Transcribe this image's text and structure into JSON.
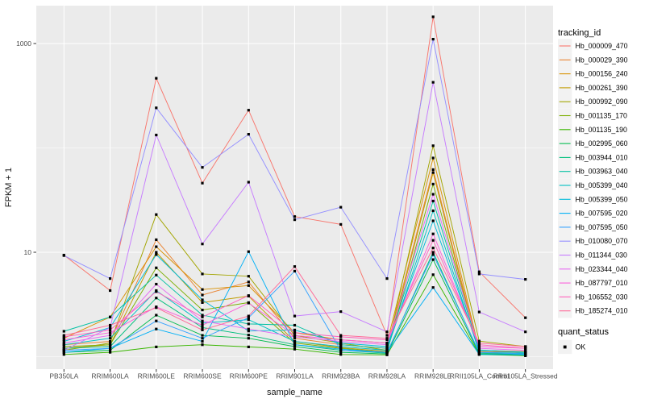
{
  "chart_data": {
    "type": "line",
    "title": "",
    "xlabel": "sample_name",
    "ylabel": "FPKM + 1",
    "y_scale": "log10",
    "y_tick_labels": [
      "1000",
      "10"
    ],
    "y_tick_values": [
      1000,
      10
    ],
    "y_minor_values": [
      100,
      1
    ],
    "grid": "on",
    "legend_position": "right",
    "legend_title": "tracking_id",
    "shape_legend": {
      "title": "quant_status",
      "entries": [
        "OK"
      ],
      "point_shape": "filled-square",
      "point_color": "#000000"
    },
    "panel_bg": "#EBEBEB",
    "grid_color": "#FFFFFF",
    "tick_color": "#333333",
    "x_categories": [
      "PB350LA",
      "RRIM600LA",
      "RRIM600LE",
      "RRIM600SE",
      "RRIM600PE",
      "RRIM901LA",
      "RRIM928BA",
      "RRIM928LA",
      "RRIM928LE",
      "RRII105LA_Control",
      "RRII105LA_Stressed"
    ],
    "series": [
      {
        "name": "Hb_000009_470",
        "color": "#F8766D",
        "values": [
          9.4,
          4.3,
          465,
          46,
          230,
          22,
          18.5,
          1.6,
          1800,
          6.5,
          2.36
        ]
      },
      {
        "name": "Hb_000029_390",
        "color": "#EA8331",
        "values": [
          1.3,
          1.4,
          13.2,
          3.9,
          5.2,
          1.5,
          1.3,
          1.2,
          62,
          1.12,
          1.1
        ]
      },
      {
        "name": "Hb_000156_240",
        "color": "#D89000",
        "values": [
          1.5,
          2.4,
          11.3,
          4.4,
          4.8,
          1.7,
          1.45,
          1.35,
          80,
          1.15,
          1.12
        ]
      },
      {
        "name": "Hb_000261_390",
        "color": "#C09B00",
        "values": [
          1.2,
          1.3,
          10.0,
          3.3,
          3.8,
          1.4,
          1.22,
          1.12,
          58,
          1.06,
          1.05
        ]
      },
      {
        "name": "Hb_000992_090",
        "color": "#A3A500",
        "values": [
          1.15,
          1.35,
          23,
          6.2,
          5.9,
          1.6,
          1.35,
          1.15,
          105,
          1.41,
          1.25
        ]
      },
      {
        "name": "Hb_001135_170",
        "color": "#7CAE00",
        "values": [
          1.25,
          1.3,
          7.1,
          2.8,
          3.3,
          1.35,
          1.2,
          1.1,
          45,
          1.1,
          1.06
        ]
      },
      {
        "name": "Hb_001135_190",
        "color": "#39B600",
        "values": [
          1.05,
          1.1,
          1.24,
          1.3,
          1.24,
          1.18,
          1.05,
          1.04,
          6.1,
          1.05,
          1.02
        ]
      },
      {
        "name": "Hb_002995_060",
        "color": "#00BB4E",
        "values": [
          1.1,
          1.15,
          2.5,
          1.6,
          1.5,
          1.25,
          1.1,
          1.06,
          8.5,
          1.06,
          1.04
        ]
      },
      {
        "name": "Hb_003944_010",
        "color": "#00BF7D",
        "values": [
          1.2,
          1.25,
          3.65,
          1.9,
          1.61,
          1.3,
          1.15,
          1.08,
          10,
          1.08,
          1.05
        ]
      },
      {
        "name": "Hb_003963_040",
        "color": "#00C1A3",
        "values": [
          1.75,
          2.4,
          6.05,
          2.5,
          2.06,
          2.0,
          1.3,
          1.2,
          31,
          1.15,
          1.1
        ]
      },
      {
        "name": "Hb_005399_040",
        "color": "#00BFC4",
        "values": [
          1.3,
          1.5,
          4.3,
          2.1,
          2.26,
          1.4,
          1.25,
          1.15,
          25,
          1.1,
          1.08
        ]
      },
      {
        "name": "Hb_005399_050",
        "color": "#00BBDA",
        "values": [
          1.4,
          1.9,
          9.5,
          3.5,
          1.76,
          1.8,
          1.35,
          1.25,
          20,
          1.16,
          1.1
        ]
      },
      {
        "name": "Hb_007595_020",
        "color": "#00B0F6",
        "values": [
          1.1,
          1.2,
          1.84,
          1.4,
          10.15,
          1.3,
          1.18,
          1.1,
          4.6,
          1.05,
          1.04
        ]
      },
      {
        "name": "Hb_007595_050",
        "color": "#35A2FF",
        "values": [
          1.15,
          1.2,
          2.2,
          1.5,
          2.36,
          6.6,
          1.15,
          1.1,
          9.5,
          1.1,
          1.06
        ]
      },
      {
        "name": "Hb_010080_070",
        "color": "#9590FF",
        "values": [
          9.3,
          5.6,
          242,
          65,
          135,
          20.5,
          27,
          5.6,
          1100,
          6.2,
          5.5
        ]
      },
      {
        "name": "Hb_011344_030",
        "color": "#C77CFF",
        "values": [
          1.15,
          1.9,
          133,
          12,
          47,
          2.45,
          2.7,
          1.73,
          425,
          2.68,
          1.73
        ]
      },
      {
        "name": "Hb_023344_040",
        "color": "#E76BF3",
        "values": [
          1.35,
          1.6,
          4.95,
          2.2,
          1.84,
          1.55,
          1.4,
          1.3,
          36,
          1.2,
          1.15
        ]
      },
      {
        "name": "Hb_087797_010",
        "color": "#FA62DB",
        "values": [
          1.45,
          1.7,
          3.0,
          2.0,
          3.26,
          1.6,
          1.45,
          1.35,
          15,
          1.25,
          1.2
        ]
      },
      {
        "name": "Hb_106552_030",
        "color": "#FF62BC",
        "values": [
          1.55,
          1.8,
          4.2,
          2.4,
          3.85,
          1.7,
          1.55,
          1.45,
          13,
          1.3,
          1.2
        ]
      },
      {
        "name": "Hb_185274_010",
        "color": "#FF6A98",
        "values": [
          1.6,
          2.0,
          2.95,
          1.8,
          2.45,
          7.3,
          1.6,
          1.5,
          11,
          1.35,
          1.25
        ]
      }
    ]
  }
}
